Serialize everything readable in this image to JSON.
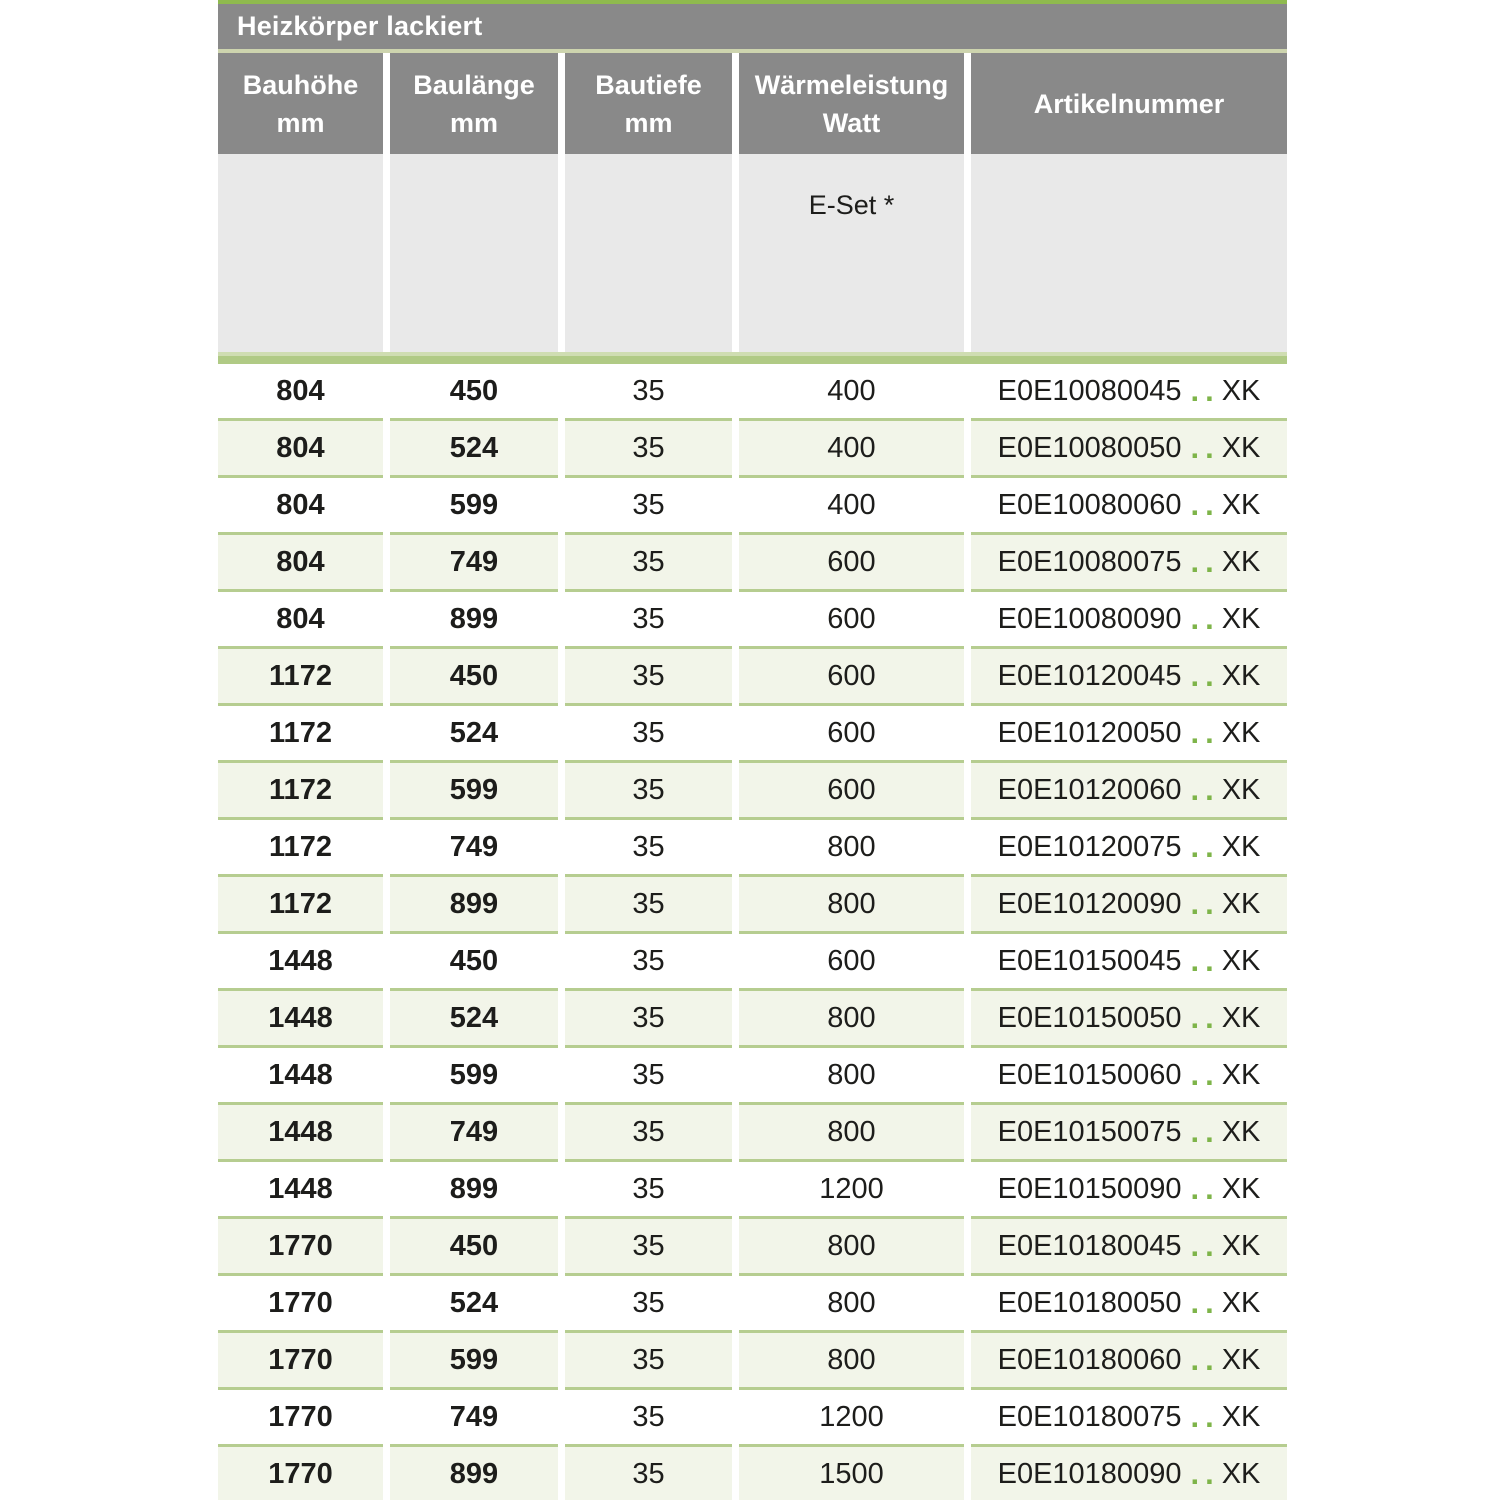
{
  "table": {
    "title": "Heizkörper lackiert",
    "columns": [
      {
        "label": "Bauhöhe",
        "unit": "mm"
      },
      {
        "label": "Baulänge",
        "unit": "mm"
      },
      {
        "label": "Bautiefe",
        "unit": "mm"
      },
      {
        "label": "Wärmeleistung",
        "unit": "Watt"
      },
      {
        "label": "Artikelnummer",
        "unit": ""
      }
    ],
    "e_set_label": "E-Set *",
    "rows": [
      {
        "bauhoehe_mm": "804",
        "baulaenge_mm": "450",
        "bautiefe_mm": "35",
        "waermeleistung_watt": "400",
        "artikel_base": "E0E10080045",
        "artikel_dots": "..",
        "artikel_suffix": "XK"
      },
      {
        "bauhoehe_mm": "804",
        "baulaenge_mm": "524",
        "bautiefe_mm": "35",
        "waermeleistung_watt": "400",
        "artikel_base": "E0E10080050",
        "artikel_dots": "..",
        "artikel_suffix": "XK"
      },
      {
        "bauhoehe_mm": "804",
        "baulaenge_mm": "599",
        "bautiefe_mm": "35",
        "waermeleistung_watt": "400",
        "artikel_base": "E0E10080060",
        "artikel_dots": "..",
        "artikel_suffix": "XK"
      },
      {
        "bauhoehe_mm": "804",
        "baulaenge_mm": "749",
        "bautiefe_mm": "35",
        "waermeleistung_watt": "600",
        "artikel_base": "E0E10080075",
        "artikel_dots": "..",
        "artikel_suffix": "XK"
      },
      {
        "bauhoehe_mm": "804",
        "baulaenge_mm": "899",
        "bautiefe_mm": "35",
        "waermeleistung_watt": "600",
        "artikel_base": "E0E10080090",
        "artikel_dots": "..",
        "artikel_suffix": "XK"
      },
      {
        "bauhoehe_mm": "1172",
        "baulaenge_mm": "450",
        "bautiefe_mm": "35",
        "waermeleistung_watt": "600",
        "artikel_base": "E0E10120045",
        "artikel_dots": "..",
        "artikel_suffix": "XK"
      },
      {
        "bauhoehe_mm": "1172",
        "baulaenge_mm": "524",
        "bautiefe_mm": "35",
        "waermeleistung_watt": "600",
        "artikel_base": "E0E10120050",
        "artikel_dots": "..",
        "artikel_suffix": "XK"
      },
      {
        "bauhoehe_mm": "1172",
        "baulaenge_mm": "599",
        "bautiefe_mm": "35",
        "waermeleistung_watt": "600",
        "artikel_base": "E0E10120060",
        "artikel_dots": "..",
        "artikel_suffix": "XK"
      },
      {
        "bauhoehe_mm": "1172",
        "baulaenge_mm": "749",
        "bautiefe_mm": "35",
        "waermeleistung_watt": "800",
        "artikel_base": "E0E10120075",
        "artikel_dots": "..",
        "artikel_suffix": "XK"
      },
      {
        "bauhoehe_mm": "1172",
        "baulaenge_mm": "899",
        "bautiefe_mm": "35",
        "waermeleistung_watt": "800",
        "artikel_base": "E0E10120090",
        "artikel_dots": "..",
        "artikel_suffix": "XK"
      },
      {
        "bauhoehe_mm": "1448",
        "baulaenge_mm": "450",
        "bautiefe_mm": "35",
        "waermeleistung_watt": "600",
        "artikel_base": "E0E10150045",
        "artikel_dots": "..",
        "artikel_suffix": "XK"
      },
      {
        "bauhoehe_mm": "1448",
        "baulaenge_mm": "524",
        "bautiefe_mm": "35",
        "waermeleistung_watt": "800",
        "artikel_base": "E0E10150050",
        "artikel_dots": "..",
        "artikel_suffix": "XK"
      },
      {
        "bauhoehe_mm": "1448",
        "baulaenge_mm": "599",
        "bautiefe_mm": "35",
        "waermeleistung_watt": "800",
        "artikel_base": "E0E10150060",
        "artikel_dots": "..",
        "artikel_suffix": "XK"
      },
      {
        "bauhoehe_mm": "1448",
        "baulaenge_mm": "749",
        "bautiefe_mm": "35",
        "waermeleistung_watt": "800",
        "artikel_base": "E0E10150075",
        "artikel_dots": "..",
        "artikel_suffix": "XK"
      },
      {
        "bauhoehe_mm": "1448",
        "baulaenge_mm": "899",
        "bautiefe_mm": "35",
        "waermeleistung_watt": "1200",
        "artikel_base": "E0E10150090",
        "artikel_dots": "..",
        "artikel_suffix": "XK"
      },
      {
        "bauhoehe_mm": "1770",
        "baulaenge_mm": "450",
        "bautiefe_mm": "35",
        "waermeleistung_watt": "800",
        "artikel_base": "E0E10180045",
        "artikel_dots": "..",
        "artikel_suffix": "XK"
      },
      {
        "bauhoehe_mm": "1770",
        "baulaenge_mm": "524",
        "bautiefe_mm": "35",
        "waermeleistung_watt": "800",
        "artikel_base": "E0E10180050",
        "artikel_dots": "..",
        "artikel_suffix": "XK"
      },
      {
        "bauhoehe_mm": "1770",
        "baulaenge_mm": "599",
        "bautiefe_mm": "35",
        "waermeleistung_watt": "800",
        "artikel_base": "E0E10180060",
        "artikel_dots": "..",
        "artikel_suffix": "XK"
      },
      {
        "bauhoehe_mm": "1770",
        "baulaenge_mm": "749",
        "bautiefe_mm": "35",
        "waermeleistung_watt": "1200",
        "artikel_base": "E0E10180075",
        "artikel_dots": "..",
        "artikel_suffix": "XK"
      },
      {
        "bauhoehe_mm": "1770",
        "baulaenge_mm": "899",
        "bautiefe_mm": "35",
        "waermeleistung_watt": "1500",
        "artikel_base": "E0E10180090",
        "artikel_dots": "..",
        "artikel_suffix": "XK"
      }
    ]
  },
  "colors": {
    "accent_green": "#8fba4e",
    "dots_green": "#7eb449",
    "separator_green": "#b6cd90",
    "bar_green": "#b0ca85",
    "bar_pale_green": "#cfddb2",
    "title_divider": "#cdd4ae",
    "header_gray": "#898989",
    "subheader_gray": "#e9e9e9",
    "row_tint_green": "#f2f5e9",
    "text_dark": "#1d1d1b"
  }
}
